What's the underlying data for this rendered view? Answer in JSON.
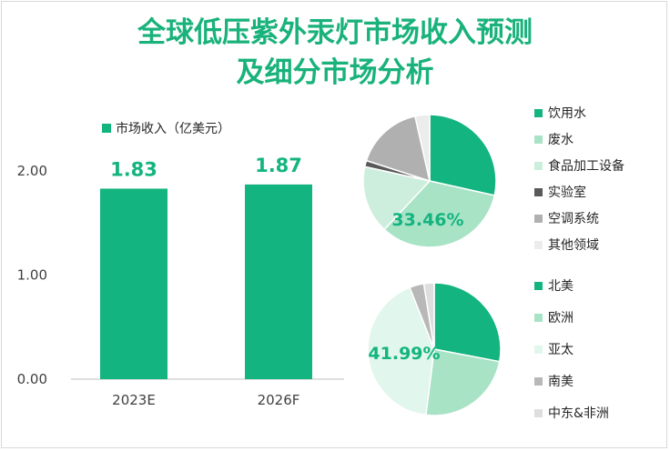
{
  "title_line1": "全球低压紫外汞灯市场收入预测",
  "title_line2": "及细分市场分析",
  "chart_data": [
    {
      "type": "bar",
      "categories": [
        "2023E",
        "2026F"
      ],
      "series": [
        {
          "name": "市场收入（亿美元）",
          "values": [
            1.83,
            1.87
          ]
        }
      ],
      "value_labels": [
        "1.83",
        "1.87"
      ],
      "ylim": [
        0,
        2.0
      ],
      "yticks": [
        "0.00",
        "1.00",
        "2.00"
      ],
      "grid": false,
      "legend": "top",
      "color": "#13b47f"
    },
    {
      "type": "pie",
      "legend": "right",
      "labels": [
        "饮用水",
        "废水",
        "食品加工设备",
        "实验室",
        "空调系统",
        "其他领域"
      ],
      "values": [
        28.5,
        33.46,
        16.5,
        1.5,
        16.5,
        3.54
      ],
      "colors": [
        "#13b47f",
        "#a8e3c6",
        "#cdeedd",
        "#595959",
        "#b0b0b0",
        "#ececec"
      ],
      "data_label": "33.46%"
    },
    {
      "type": "pie",
      "legend": "right",
      "labels": [
        "北美",
        "欧洲",
        "亚太",
        "南美",
        "中东&非洲"
      ],
      "values": [
        28.0,
        24.0,
        41.99,
        3.5,
        2.51
      ],
      "colors": [
        "#13b47f",
        "#a8e3c6",
        "#e1f6ec",
        "#b8b8b8",
        "#dedede"
      ],
      "data_label": "41.99%"
    }
  ]
}
